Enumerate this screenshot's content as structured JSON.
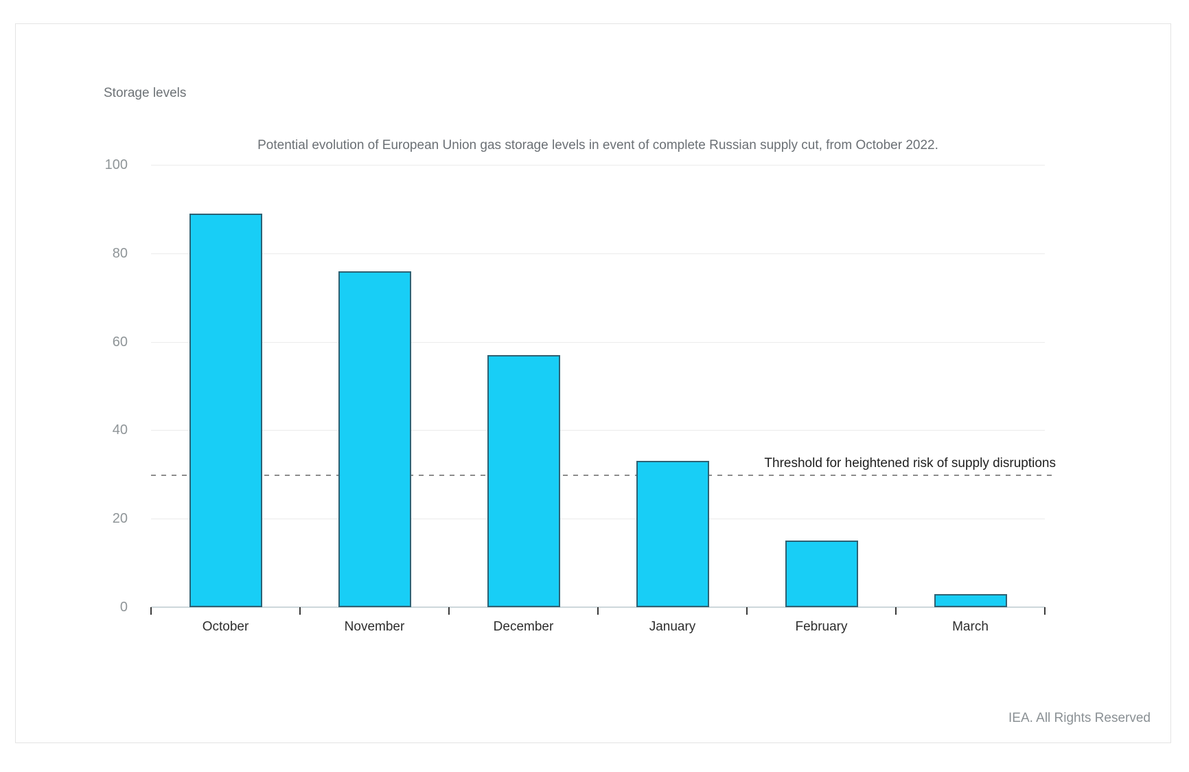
{
  "page": {
    "footer": "IEA. All Rights Reserved"
  },
  "chart_data": {
    "type": "bar",
    "title": "Potential evolution of European Union gas storage levels in event of complete Russian supply cut, from October 2022.",
    "ylabel": "Storage levels",
    "xlabel": "",
    "categories": [
      "October",
      "November",
      "December",
      "January",
      "February",
      "March"
    ],
    "values": [
      89,
      76,
      57,
      33,
      15,
      3
    ],
    "ylim": [
      0,
      100
    ],
    "yticks": [
      0,
      20,
      40,
      60,
      80,
      100
    ],
    "grid": "horizontal",
    "legend": "none",
    "threshold": {
      "value": 30,
      "label": "Threshold for heightened risk of supply disruptions"
    },
    "colors": {
      "bar_fill": "#18CEF6",
      "bar_border": "#2E6173",
      "gridline": "#ebebeb",
      "baseline": "#cdd7db",
      "threshold_dash": "#8c8c8c",
      "axis_value_text": "#8f9598",
      "category_text": "#2e2e2e",
      "title_text": "#6b7075"
    }
  }
}
